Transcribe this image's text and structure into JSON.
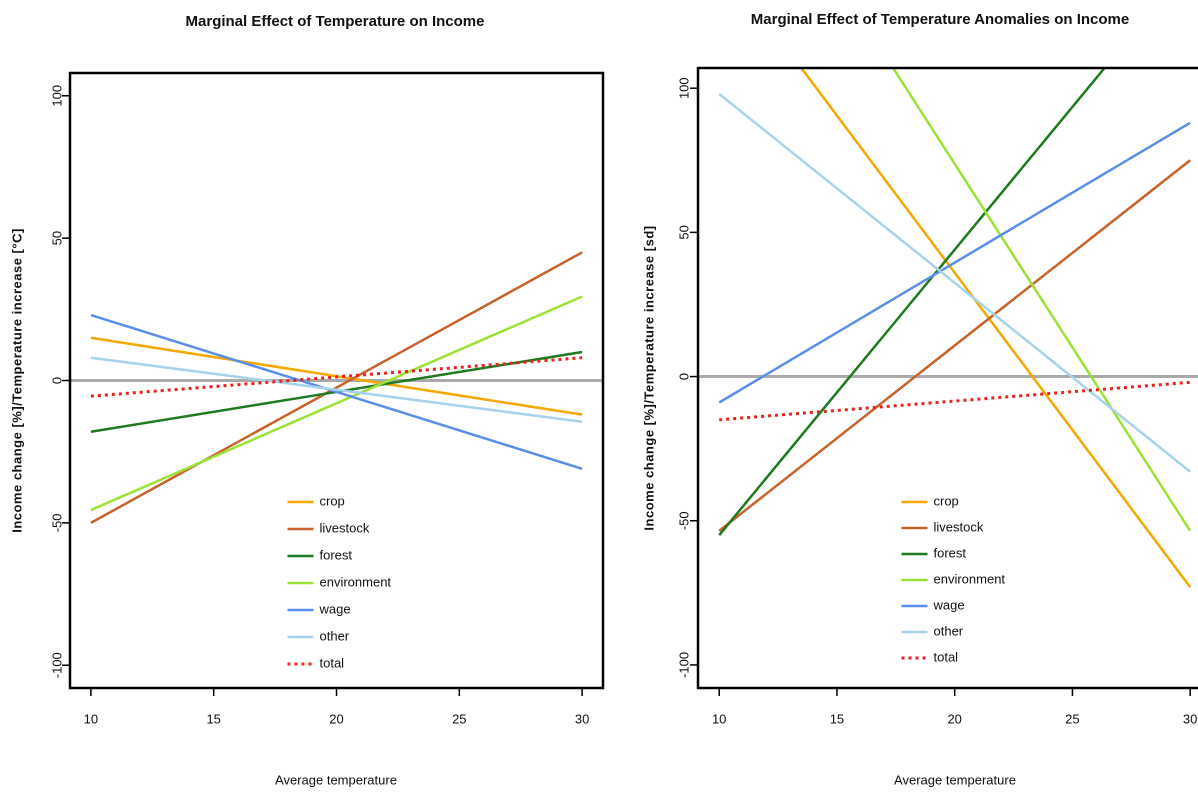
{
  "chart_data": [
    {
      "type": "line",
      "title": "Marginal Effect of Temperature on Income",
      "xlabel": "Average temperature",
      "ylabel": "Income change [%]/Temperature increase [°C]",
      "x": [
        10,
        30
      ],
      "xlim": [
        9.15,
        30.85
      ],
      "ylim": [
        -108,
        108
      ],
      "xticks": [
        10,
        15,
        20,
        25,
        30
      ],
      "yticks": [
        -100,
        -50,
        0,
        50,
        100
      ],
      "reference_line": 0,
      "legend": "bottom",
      "series": [
        {
          "name": "crop",
          "color": "#f5a800",
          "values": [
            15,
            -12
          ]
        },
        {
          "name": "livestock",
          "color": "#c8622a",
          "values": [
            -50,
            45
          ]
        },
        {
          "name": "forest",
          "color": "#1f7a1f",
          "values": [
            -18,
            10
          ]
        },
        {
          "name": "environment",
          "color": "#9be234",
          "values": [
            -45.5,
            29.5
          ]
        },
        {
          "name": "wage",
          "color": "#5b8ee6",
          "values": [
            23,
            -31
          ]
        },
        {
          "name": "other",
          "color": "#a7d3ea",
          "values": [
            8,
            -14.5
          ]
        },
        {
          "name": "total",
          "color": "#e8221c",
          "dashed": true,
          "values": [
            -5.5,
            8
          ]
        }
      ]
    },
    {
      "type": "line",
      "title": "Marginal Effect of Temperature Anomalies on Income",
      "xlabel": "Average temperature",
      "ylabel": "Income change [%]/Temperature increase [sd]",
      "x": [
        10,
        30
      ],
      "xlim": [
        9.1,
        30.8
      ],
      "ylim": [
        -108,
        107
      ],
      "xticks": [
        10,
        15,
        20,
        25,
        30
      ],
      "yticks": [
        -100,
        -50,
        0,
        50,
        100
      ],
      "reference_line": 0,
      "legend": "bottom",
      "series": [
        {
          "name": "crop",
          "color": "#f5a800",
          "values": [
            145,
            -73
          ]
        },
        {
          "name": "livestock",
          "color": "#c8622a",
          "values": [
            -53.5,
            75
          ]
        },
        {
          "name": "forest",
          "color": "#1f7a1f",
          "values": [
            -55,
            143
          ]
        },
        {
          "name": "environment",
          "color": "#9be234",
          "values": [
            201,
            -53.5
          ]
        },
        {
          "name": "wage",
          "color": "#5b8ee6",
          "values": [
            -9,
            88
          ]
        },
        {
          "name": "other",
          "color": "#a7d3ea",
          "values": [
            98,
            -33
          ]
        },
        {
          "name": "total",
          "color": "#e8221c",
          "dashed": true,
          "values": [
            -15,
            -2
          ]
        }
      ]
    }
  ]
}
